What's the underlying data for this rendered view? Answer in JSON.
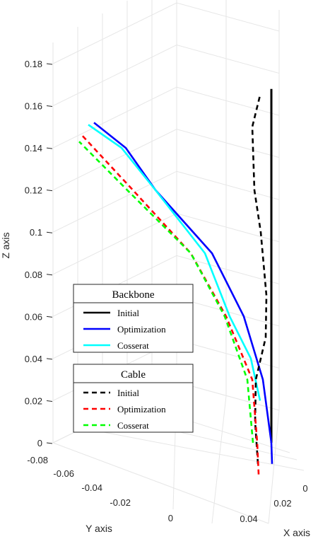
{
  "chart_data": {
    "type": "line",
    "projection": "3d",
    "grid": true,
    "axes": {
      "x": {
        "label": "X axis",
        "ticks": [
          "0",
          "0.02",
          "0.04"
        ]
      },
      "y": {
        "label": "Y axis",
        "ticks": [
          "-0.08",
          "-0.06",
          "-0.04",
          "-0.02",
          "0"
        ]
      },
      "z": {
        "label": "Z axis",
        "ticks": [
          "0",
          "0.02",
          "0.04",
          "0.06",
          "0.08",
          "0.1",
          "0.12",
          "0.14",
          "0.16",
          "0.18"
        ],
        "range": [
          0,
          0.18
        ]
      }
    },
    "legends": [
      {
        "title": "Backbone",
        "placement": "left",
        "entries": [
          {
            "label": "Initial",
            "color": "#000000",
            "style": "solid"
          },
          {
            "label": "Optimization",
            "color": "#0000ff",
            "style": "solid"
          },
          {
            "label": "Cosserat",
            "color": "#00ffff",
            "style": "solid"
          }
        ]
      },
      {
        "title": "Cable",
        "placement": "left",
        "entries": [
          {
            "label": "Initial",
            "color": "#000000",
            "style": "dashed"
          },
          {
            "label": "Optimization",
            "color": "#ff0000",
            "style": "dashed"
          },
          {
            "label": "Cosserat",
            "color": "#00ff00",
            "style": "dashed"
          }
        ]
      }
    ],
    "series": [
      {
        "group": "Backbone",
        "color": "#000000",
        "dash": false,
        "z": [
          0.0,
          0.168
        ]
      },
      {
        "group": "Backbone",
        "color": "#0000ff",
        "dash": false,
        "z": [
          -0.01,
          0.0,
          0.03,
          0.06,
          0.09,
          0.12,
          0.14,
          0.152
        ]
      },
      {
        "group": "Backbone",
        "color": "#00ffff",
        "dash": false,
        "z": [
          0.02,
          0.04,
          0.06,
          0.09,
          0.12,
          0.14,
          0.151
        ]
      },
      {
        "group": "Cable",
        "color": "#000000",
        "dash": true,
        "z": [
          -0.01,
          0.01,
          0.03,
          0.05,
          0.07,
          0.1,
          0.12,
          0.15,
          0.165
        ]
      },
      {
        "group": "Cable",
        "color": "#ff0000",
        "dash": true,
        "z": [
          -0.015,
          0.0,
          0.03,
          0.06,
          0.09,
          0.12,
          0.146
        ]
      },
      {
        "group": "Cable",
        "color": "#00ff00",
        "dash": true,
        "z": [
          0.0,
          0.03,
          0.06,
          0.09,
          0.12,
          0.143
        ]
      }
    ]
  }
}
